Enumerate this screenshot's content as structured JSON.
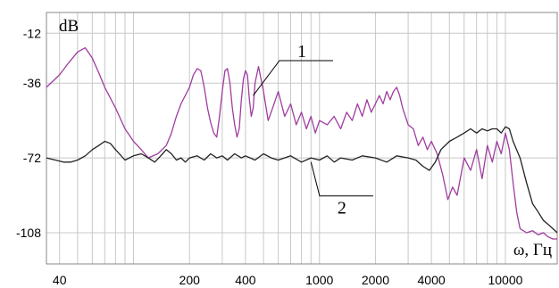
{
  "chart_data": {
    "type": "line",
    "ylabel": "dB",
    "xlabel": "ω, Гц",
    "x_scale": "log",
    "xlim": [
      34,
      19000
    ],
    "ylim": [
      -123,
      -2
    ],
    "x_ticks": [
      40,
      200,
      400,
      1000,
      2000,
      4000,
      10000
    ],
    "x_tick_labels": [
      "40",
      "200",
      "400",
      "1000",
      "2000",
      "4000",
      "10000"
    ],
    "y_ticks": [
      -12,
      -36,
      -72,
      -108
    ],
    "y_tick_labels": [
      "-12",
      "-36",
      "-72",
      "-108"
    ],
    "grid": true,
    "colors": {
      "series_1": "#a03ca0",
      "series_2": "#222222",
      "grid": "#c8c8c8"
    },
    "series": [
      {
        "name": "1",
        "x": [
          34,
          40,
          45,
          50,
          55,
          60,
          65,
          70,
          80,
          90,
          100,
          110,
          120,
          135,
          150,
          160,
          170,
          180,
          200,
          210,
          220,
          230,
          240,
          250,
          260,
          270,
          280,
          290,
          300,
          310,
          320,
          330,
          340,
          350,
          360,
          370,
          380,
          390,
          400,
          410,
          420,
          430,
          440,
          450,
          470,
          500,
          530,
          560,
          600,
          650,
          700,
          750,
          800,
          850,
          900,
          950,
          1000,
          1100,
          1200,
          1300,
          1400,
          1500,
          1600,
          1700,
          1800,
          1900,
          2000,
          2100,
          2200,
          2300,
          2400,
          2500,
          2600,
          2700,
          2800,
          3000,
          3200,
          3400,
          3600,
          3800,
          4000,
          4300,
          4600,
          4900,
          5200,
          5500,
          6000,
          6500,
          7000,
          7500,
          8000,
          8500,
          9000,
          9500,
          10000,
          10500,
          11000,
          11500,
          12000,
          13000,
          14000,
          15000,
          16000,
          17000,
          18000,
          19000
        ],
        "y": [
          -38,
          -32,
          -26,
          -21,
          -19,
          -24,
          -31,
          -38,
          -48,
          -58,
          -64,
          -68,
          -72,
          -70,
          -66,
          -60,
          -52,
          -46,
          -38,
          -32,
          -29,
          -30,
          -38,
          -48,
          -55,
          -60,
          -62,
          -52,
          -40,
          -30,
          -29,
          -36,
          -48,
          -56,
          -62,
          -58,
          -44,
          -34,
          -30,
          -32,
          -44,
          -52,
          -48,
          -36,
          -28,
          -40,
          -54,
          -48,
          -40,
          -52,
          -46,
          -56,
          -50,
          -58,
          -52,
          -60,
          -54,
          -56,
          -52,
          -58,
          -50,
          -54,
          -46,
          -52,
          -44,
          -50,
          -46,
          -42,
          -46,
          -40,
          -44,
          -40,
          -38,
          -42,
          -48,
          -56,
          -58,
          -66,
          -62,
          -68,
          -64,
          -70,
          -80,
          -92,
          -86,
          -90,
          -72,
          -78,
          -68,
          -82,
          -66,
          -74,
          -64,
          -70,
          -60,
          -68,
          -84,
          -98,
          -106,
          -108,
          -107,
          -109,
          -108,
          -110,
          -111,
          -111
        ]
      },
      {
        "name": "2",
        "x": [
          34,
          38,
          42,
          46,
          50,
          55,
          60,
          65,
          70,
          75,
          80,
          90,
          100,
          110,
          120,
          130,
          140,
          150,
          160,
          170,
          180,
          190,
          200,
          220,
          240,
          260,
          280,
          300,
          320,
          350,
          380,
          400,
          450,
          500,
          550,
          600,
          700,
          800,
          900,
          1000,
          1100,
          1200,
          1300,
          1500,
          1700,
          2000,
          2300,
          2600,
          3000,
          3300,
          3600,
          3900,
          4200,
          4500,
          5000,
          5500,
          6000,
          6500,
          7000,
          7500,
          8000,
          8500,
          9000,
          9500,
          10000,
          10500,
          11000,
          12000,
          13000,
          14000,
          15000,
          16000,
          17000,
          18000,
          19000
        ],
        "y": [
          -72,
          -73,
          -74,
          -74,
          -73,
          -71,
          -68,
          -66,
          -64,
          -65,
          -68,
          -73,
          -71,
          -70,
          -72,
          -74,
          -71,
          -68,
          -70,
          -73,
          -72,
          -74,
          -72,
          -71,
          -73,
          -70,
          -72,
          -71,
          -73,
          -70,
          -72,
          -71,
          -73,
          -70,
          -72,
          -73,
          -71,
          -74,
          -72,
          -73,
          -71,
          -74,
          -72,
          -73,
          -71,
          -72,
          -74,
          -71,
          -72,
          -73,
          -76,
          -78,
          -74,
          -68,
          -64,
          -62,
          -60,
          -58,
          -60,
          -58,
          -59,
          -58,
          -58,
          -60,
          -57,
          -58,
          -64,
          -72,
          -84,
          -94,
          -98,
          -102,
          -104,
          -106,
          -108
        ]
      }
    ],
    "callouts": [
      {
        "label": "1",
        "series": "1",
        "at_x": 440,
        "at_y": -42,
        "text_x": 760,
        "text_y": -20
      },
      {
        "label": "2",
        "series": "2",
        "at_x": 900,
        "at_y": -74,
        "text_x": 1250,
        "text_y": -98
      }
    ]
  }
}
